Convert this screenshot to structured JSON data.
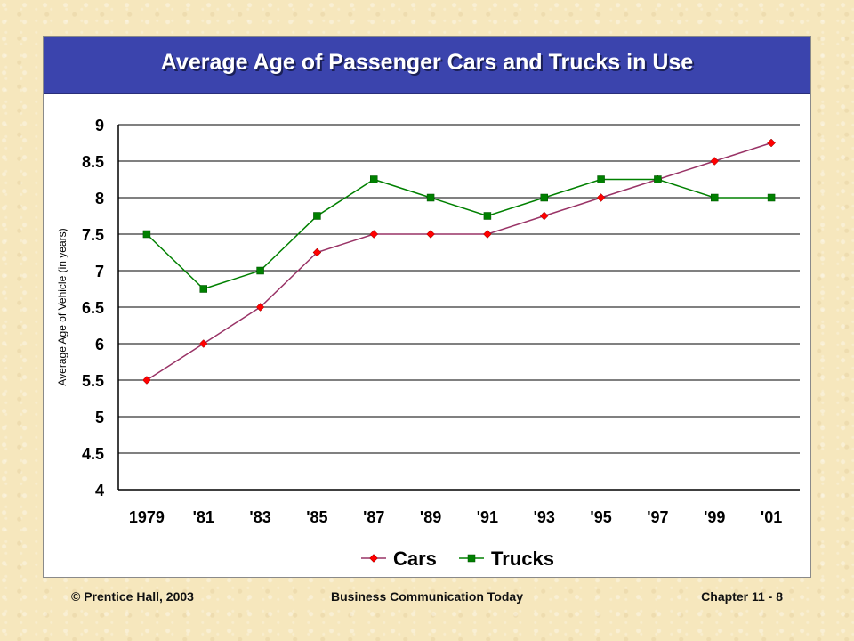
{
  "slide": {
    "footer_left": "© Prentice Hall, 2003",
    "footer_center": "Business Communication Today",
    "footer_right": "Chapter 11 - 8"
  },
  "colors": {
    "title_bar": "#3b44ad",
    "cars": "#ff0000",
    "cars_line": "#993366",
    "trucks": "#008000"
  },
  "chart_data": {
    "type": "line",
    "title": "Average Age of Passenger Cars and Trucks in Use",
    "ylabel": "Average Age of Vehicle (in years)",
    "xlabel": "",
    "categories": [
      "1979",
      "'81",
      "'83",
      "'85",
      "'87",
      "'89",
      "'91",
      "'93",
      "'95",
      "'97",
      "'99",
      "'01"
    ],
    "ylim": [
      4,
      9
    ],
    "yticks": [
      "4",
      "4.5",
      "5",
      "5.5",
      "6",
      "6.5",
      "7",
      "7.5",
      "8",
      "8.5",
      "9"
    ],
    "grid": true,
    "legend_position": "bottom",
    "series": [
      {
        "name": "Cars",
        "marker": "diamond",
        "values": [
          5.5,
          6,
          6.5,
          7.25,
          7.5,
          7.5,
          7.5,
          7.75,
          8,
          8.25,
          8.5,
          8.75
        ]
      },
      {
        "name": "Trucks",
        "marker": "square",
        "values": [
          7.5,
          6.75,
          7,
          7.75,
          8.25,
          8,
          7.75,
          8,
          8.25,
          8.25,
          8,
          8
        ]
      }
    ]
  }
}
